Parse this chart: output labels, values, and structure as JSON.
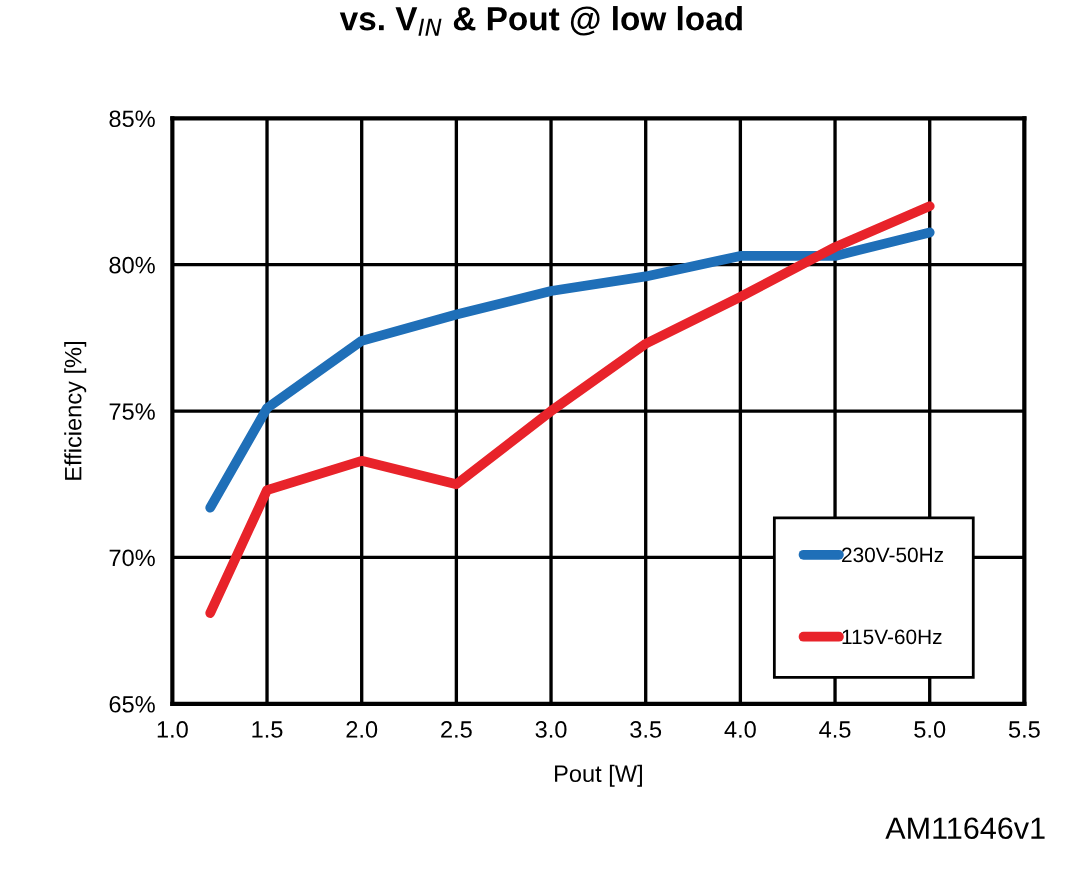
{
  "chart_data": {
    "type": "line",
    "title": "vs. V$_{IN}$ & Pout @ low load",
    "xlabel": "Pout [W]",
    "ylabel": "Efficiency [%]",
    "x": [
      1.2,
      1.5,
      2.0,
      2.5,
      3.0,
      3.5,
      4.0,
      4.5,
      5.0
    ],
    "series": [
      {
        "name": "230V-50Hz",
        "color": "#1f6fb8",
        "values": [
          71.7,
          75.1,
          77.4,
          78.3,
          79.1,
          79.6,
          80.3,
          80.3,
          81.1
        ]
      },
      {
        "name": "115V-60Hz",
        "color": "#e8232a",
        "values": [
          68.1,
          72.3,
          73.3,
          72.5,
          75.0,
          77.3,
          78.9,
          80.6,
          82.0
        ]
      }
    ],
    "xlim": [
      1.0,
      5.5
    ],
    "xticks": [
      {
        "value": 1.0,
        "label": "1.0"
      },
      1.5,
      {
        "value": 2.0,
        "label": "2.0"
      },
      2.5,
      {
        "value": 3.0,
        "label": "3.0"
      },
      3.5,
      {
        "value": 4.0,
        "label": "4.0"
      },
      4.5,
      {
        "value": 5.0,
        "label": "5.0"
      },
      5.5
    ],
    "ylim": [
      65,
      85
    ],
    "yticks": [
      {
        "value": 65,
        "label": "65%"
      },
      {
        "value": 70,
        "label": "70%"
      },
      {
        "value": 75,
        "label": "75%"
      },
      {
        "value": 80,
        "label": "80%"
      },
      {
        "value": 85,
        "label": "85%"
      }
    ],
    "grid": true,
    "legend": "bottom right",
    "marker": "none",
    "line_style": "solid",
    "annotations": [
      "AM11646v1"
    ]
  }
}
